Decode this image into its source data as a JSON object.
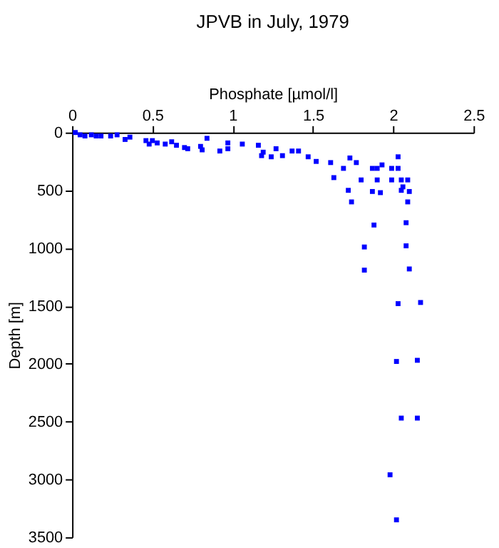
{
  "chart_data": {
    "type": "scatter",
    "title": "JPVB in July, 1979",
    "xlabel": "Phosphate [µmol/l]",
    "ylabel": "Depth [m]",
    "xlim": [
      0,
      2.5
    ],
    "xticks": [
      0,
      0.5,
      1,
      1.5,
      2,
      2.5
    ],
    "ylim": [
      3500,
      0
    ],
    "yticks": [
      0,
      500,
      1000,
      1500,
      2000,
      2500,
      3000,
      3500
    ],
    "grid": false,
    "marker": "square",
    "series": [
      {
        "color": "#0000ff",
        "x": [
          0.02,
          0.05,
          0.08,
          0.12,
          0.15,
          0.18,
          0.24,
          0.28,
          0.33,
          0.36,
          0.46,
          0.48,
          0.5,
          0.53,
          0.58,
          0.62,
          0.65,
          0.7,
          0.72,
          0.8,
          0.81,
          0.84,
          0.92,
          0.97,
          0.97,
          1.06,
          1.16,
          1.19,
          1.18,
          1.24,
          1.27,
          1.31,
          1.37,
          1.41,
          1.47,
          1.52,
          1.61,
          1.63,
          1.69,
          1.73,
          1.72,
          1.74,
          1.77,
          1.8,
          1.87,
          1.9,
          1.9,
          1.87,
          1.92,
          1.93,
          1.99,
          1.99,
          2.03,
          2.03,
          2.05,
          2.05,
          2.06,
          2.09,
          2.1,
          2.09,
          1.88,
          2.08,
          1.82,
          2.08,
          1.82,
          2.1,
          2.03,
          2.17,
          2.02,
          2.15,
          2.05,
          2.15,
          1.98,
          2.02
        ],
        "values": [
          0,
          20,
          30,
          20,
          30,
          30,
          30,
          20,
          60,
          40,
          70,
          100,
          70,
          90,
          100,
          80,
          110,
          130,
          140,
          120,
          150,
          50,
          160,
          90,
          140,
          100,
          110,
          170,
          200,
          210,
          140,
          200,
          160,
          160,
          210,
          250,
          260,
          390,
          310,
          220,
          500,
          600,
          260,
          410,
          310,
          310,
          410,
          510,
          520,
          280,
          310,
          410,
          210,
          310,
          410,
          500,
          470,
          410,
          510,
          600,
          800,
          780,
          990,
          980,
          1190,
          1180,
          1480,
          1470,
          1980,
          1970,
          2470,
          2470,
          2960,
          3350
        ]
      }
    ]
  }
}
